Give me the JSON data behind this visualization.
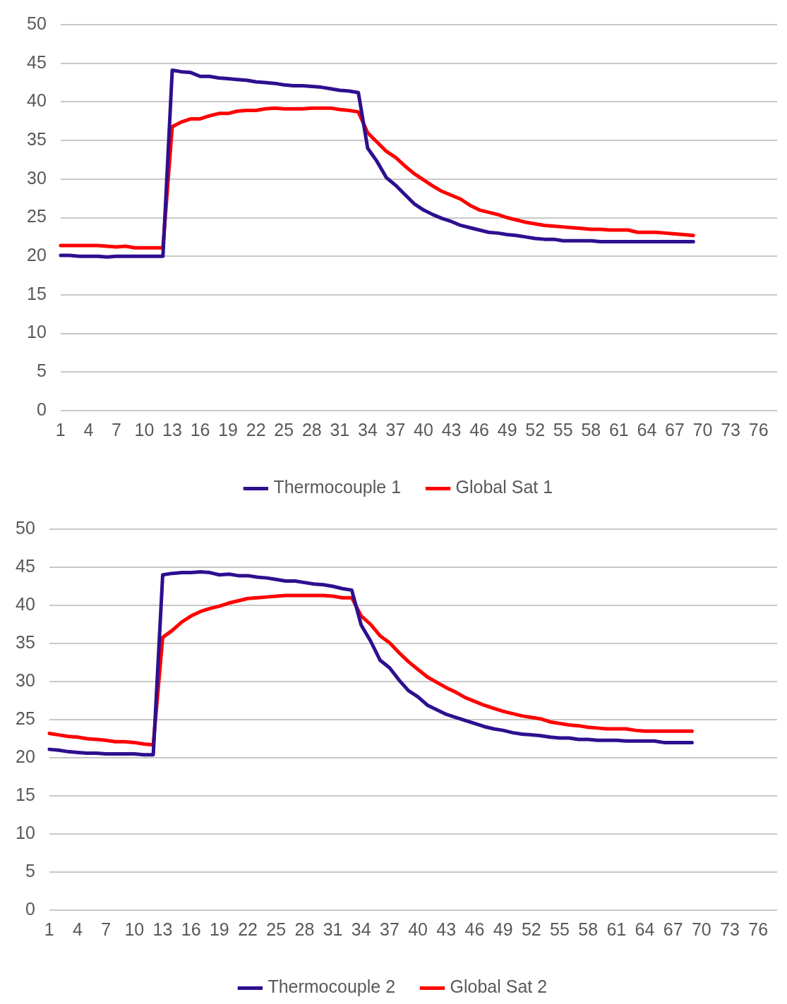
{
  "chart_data": [
    {
      "type": "line",
      "categories": [
        "1",
        null,
        null,
        "4",
        null,
        null,
        "7",
        null,
        null,
        "10",
        null,
        null,
        "13",
        null,
        null,
        "16",
        null,
        null,
        "19",
        null,
        null,
        "22",
        null,
        null,
        "25",
        null,
        null,
        "28",
        null,
        null,
        "31",
        null,
        null,
        "34",
        null,
        null,
        "37",
        null,
        null,
        "40",
        null,
        null,
        "43",
        null,
        null,
        "46",
        null,
        null,
        "49",
        null,
        null,
        "52",
        null,
        null,
        "55",
        null,
        null,
        "58",
        null,
        null,
        "61",
        null,
        null,
        "64",
        null,
        null,
        "67",
        null,
        null,
        "70",
        null,
        null,
        "73",
        null,
        null,
        "76",
        null,
        null
      ],
      "series": [
        {
          "name": "Thermocouple 1",
          "color": "#2e0f8f",
          "values": [
            20.1,
            20.1,
            20.0,
            20.0,
            20.0,
            19.9,
            20.0,
            20.0,
            20.0,
            20.0,
            20.0,
            20.0,
            44.1,
            43.9,
            43.8,
            43.3,
            43.3,
            43.1,
            43.0,
            42.9,
            42.8,
            42.6,
            42.5,
            42.4,
            42.2,
            42.1,
            42.1,
            42.0,
            41.9,
            41.7,
            41.5,
            41.4,
            41.2,
            34.0,
            32.3,
            30.2,
            29.2,
            28.0,
            26.8,
            26.0,
            25.4,
            24.9,
            24.5,
            24.0,
            23.7,
            23.4,
            23.1,
            23.0,
            22.8,
            22.7,
            22.5,
            22.3,
            22.2,
            22.2,
            22.0,
            22.0,
            22.0,
            22.0,
            21.9,
            21.9,
            21.9,
            21.9,
            21.9,
            21.9,
            21.9,
            21.9,
            21.9,
            21.9,
            21.9,
            null,
            null,
            null,
            null,
            null,
            null,
            null,
            null,
            null
          ]
        },
        {
          "name": "Global Sat 1",
          "color": "#ff0000",
          "values": [
            21.4,
            21.4,
            21.4,
            21.4,
            21.4,
            21.3,
            21.2,
            21.3,
            21.1,
            21.1,
            21.1,
            21.1,
            36.8,
            37.4,
            37.8,
            37.8,
            38.2,
            38.5,
            38.5,
            38.8,
            38.9,
            38.9,
            39.1,
            39.2,
            39.1,
            39.1,
            39.1,
            39.2,
            39.2,
            39.2,
            39.0,
            38.9,
            38.7,
            36.0,
            34.8,
            33.6,
            32.8,
            31.7,
            30.7,
            29.9,
            29.1,
            28.4,
            27.9,
            27.4,
            26.6,
            26.0,
            25.7,
            25.4,
            25.0,
            24.7,
            24.4,
            24.2,
            24.0,
            23.9,
            23.8,
            23.7,
            23.6,
            23.5,
            23.5,
            23.4,
            23.4,
            23.4,
            23.1,
            23.1,
            23.1,
            23.0,
            22.9,
            22.8,
            22.7,
            null,
            null,
            null,
            null,
            null,
            null,
            null,
            null,
            null
          ]
        }
      ],
      "ylim": [
        0,
        50
      ],
      "yticks": [
        0,
        5,
        10,
        15,
        20,
        25,
        30,
        35,
        40,
        45,
        50
      ],
      "grid": "y",
      "legend": "bottom",
      "marker": "none",
      "line_style": "solid"
    },
    {
      "type": "line",
      "categories": [
        "1",
        null,
        null,
        "4",
        null,
        null,
        "7",
        null,
        null,
        "10",
        null,
        null,
        "13",
        null,
        null,
        "16",
        null,
        null,
        "19",
        null,
        null,
        "22",
        null,
        null,
        "25",
        null,
        null,
        "28",
        null,
        null,
        "31",
        null,
        null,
        "34",
        null,
        null,
        "37",
        null,
        null,
        "40",
        null,
        null,
        "43",
        null,
        null,
        "46",
        null,
        null,
        "49",
        null,
        null,
        "52",
        null,
        null,
        "55",
        null,
        null,
        "58",
        null,
        null,
        "61",
        null,
        null,
        "64",
        null,
        null,
        "67",
        null,
        null,
        "70",
        null,
        null,
        "73",
        null,
        null,
        "76",
        null,
        null
      ],
      "series": [
        {
          "name": "Thermocouple 2",
          "color": "#2e0f8f",
          "values": [
            21.1,
            21.0,
            20.8,
            20.7,
            20.6,
            20.6,
            20.5,
            20.5,
            20.5,
            20.5,
            20.4,
            20.4,
            44.0,
            44.2,
            44.3,
            44.3,
            44.4,
            44.3,
            44.0,
            44.1,
            43.9,
            43.9,
            43.7,
            43.6,
            43.4,
            43.2,
            43.2,
            43.0,
            42.8,
            42.7,
            42.5,
            42.2,
            42.0,
            37.4,
            35.3,
            32.8,
            31.8,
            30.2,
            28.8,
            28.0,
            26.9,
            26.3,
            25.7,
            25.3,
            24.9,
            24.5,
            24.1,
            23.8,
            23.6,
            23.3,
            23.1,
            23.0,
            22.9,
            22.7,
            22.6,
            22.6,
            22.4,
            22.4,
            22.3,
            22.3,
            22.3,
            22.2,
            22.2,
            22.2,
            22.2,
            22.0,
            22.0,
            22.0,
            22.0,
            null,
            null,
            null,
            null,
            null,
            null,
            null,
            null,
            null
          ]
        },
        {
          "name": "Global Sat 2",
          "color": "#ff0000",
          "values": [
            23.2,
            23.0,
            22.8,
            22.7,
            22.5,
            22.4,
            22.3,
            22.1,
            22.1,
            22.0,
            21.8,
            21.7,
            35.8,
            36.7,
            37.8,
            38.6,
            39.2,
            39.6,
            39.9,
            40.3,
            40.6,
            40.9,
            41.0,
            41.1,
            41.2,
            41.3,
            41.3,
            41.3,
            41.3,
            41.3,
            41.2,
            41.0,
            41.0,
            38.6,
            37.5,
            36.0,
            35.1,
            33.8,
            32.6,
            31.6,
            30.6,
            29.9,
            29.2,
            28.6,
            27.9,
            27.4,
            26.9,
            26.5,
            26.1,
            25.8,
            25.5,
            25.3,
            25.1,
            24.7,
            24.5,
            24.3,
            24.2,
            24.0,
            23.9,
            23.8,
            23.8,
            23.8,
            23.6,
            23.5,
            23.5,
            23.5,
            23.5,
            23.5,
            23.5,
            null,
            null,
            null,
            null,
            null,
            null,
            null,
            null,
            null
          ]
        }
      ],
      "ylim": [
        0,
        50
      ],
      "yticks": [
        0,
        5,
        10,
        15,
        20,
        25,
        30,
        35,
        40,
        45,
        50
      ],
      "grid": "y",
      "legend": "bottom",
      "marker": "none",
      "line_style": "solid"
    }
  ]
}
